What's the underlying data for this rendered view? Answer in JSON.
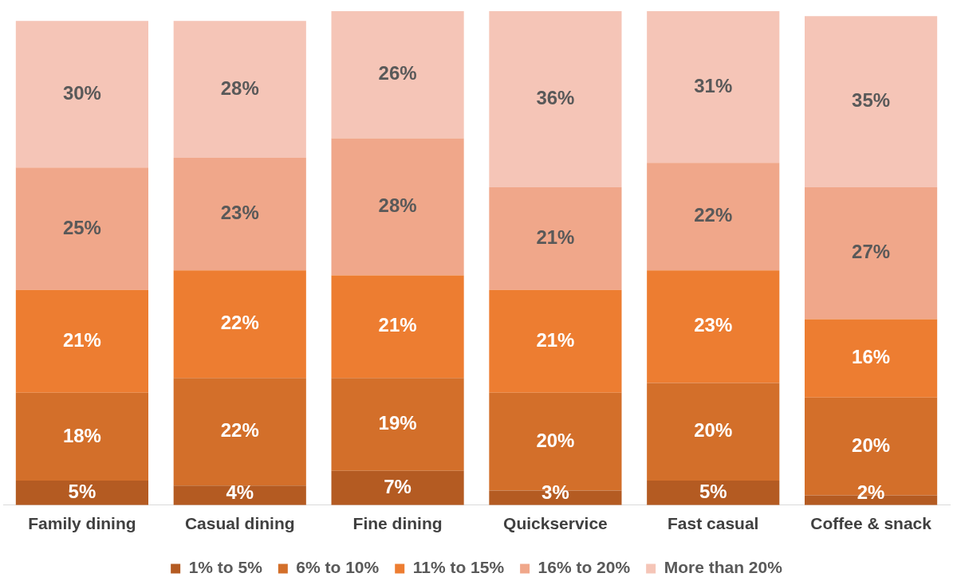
{
  "chart_data": {
    "type": "bar",
    "stacked": true,
    "categories": [
      "Family dining",
      "Casual dining",
      "Fine dining",
      "Quickservice",
      "Fast casual",
      "Coffee & snack"
    ],
    "series": [
      {
        "name": "1% to 5%",
        "color": "#b45b22",
        "values": [
          5,
          4,
          7,
          3,
          5,
          2
        ],
        "value_labels": [
          "5%",
          "4%",
          "7%",
          "3%",
          "5%",
          "2%"
        ]
      },
      {
        "name": "6% to 10%",
        "color": "#d36f2a",
        "values": [
          18,
          22,
          19,
          20,
          20,
          20
        ],
        "value_labels": [
          "18%",
          "22%",
          "19%",
          "20%",
          "20%",
          "20%"
        ]
      },
      {
        "name": "11% to 15%",
        "color": "#ed7d31",
        "values": [
          21,
          22,
          21,
          21,
          23,
          16
        ],
        "value_labels": [
          "21%",
          "22%",
          "21%",
          "21%",
          "23%",
          "16%"
        ]
      },
      {
        "name": "16% to 20%",
        "color": "#f0a78a",
        "values": [
          25,
          23,
          28,
          21,
          22,
          27
        ],
        "value_labels": [
          "25%",
          "23%",
          "28%",
          "21%",
          "22%",
          "27%"
        ]
      },
      {
        "name": "More than 20%",
        "color": "#f5c5b7",
        "values": [
          30,
          28,
          26,
          36,
          31,
          35
        ],
        "value_labels": [
          "30%",
          "28%",
          "26%",
          "36%",
          "31%",
          "35%"
        ]
      }
    ],
    "tick_labels": "x",
    "grid": false,
    "legend": "bottom"
  }
}
